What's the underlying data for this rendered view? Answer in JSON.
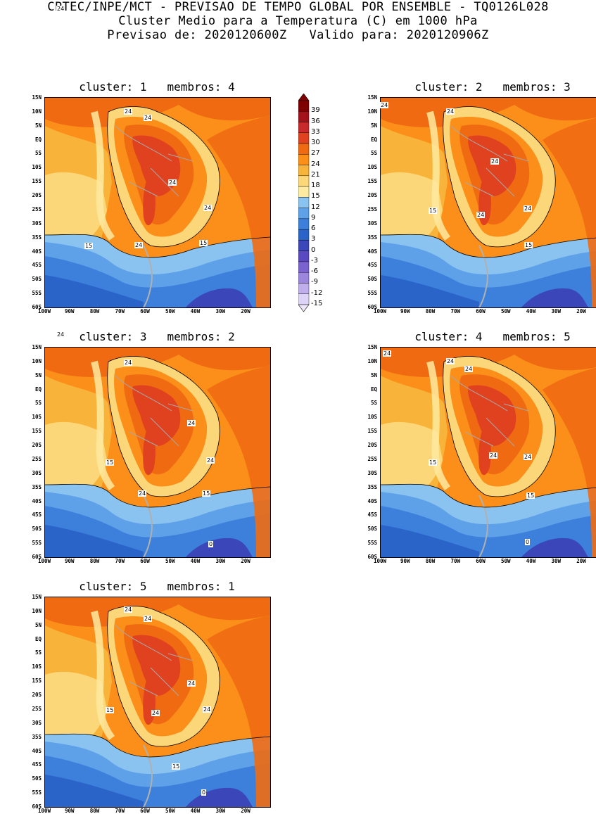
{
  "header": {
    "line1": "CPTEC/INPE/MCT - PREVISAO DE TEMPO GLOBAL POR ENSEMBLE - TQ0126L028",
    "line2": "Cluster Medio para a Temperatura (C) em 1000 hPa",
    "line3": "Previsao de: 2020120600Z   Valido para: 2020120906Z"
  },
  "lat_ticks": [
    "15N",
    "10N",
    "5N",
    "EQ",
    "5S",
    "10S",
    "15S",
    "20S",
    "25S",
    "30S",
    "35S",
    "40S",
    "45S",
    "50S",
    "55S",
    "60S"
  ],
  "lon_ticks": [
    "100W",
    "90W",
    "80W",
    "70W",
    "60W",
    "50W",
    "40W",
    "30W",
    "20W"
  ],
  "colorbar": {
    "labels": [
      "39",
      "36",
      "33",
      "30",
      "27",
      "24",
      "21",
      "18",
      "15",
      "12",
      "9",
      "6",
      "3",
      "0",
      "-3",
      "-6",
      "-9",
      "-12",
      "-15"
    ],
    "colors": [
      "#7f0000",
      "#a3121a",
      "#c8292a",
      "#e0421f",
      "#f06a12",
      "#fb8f1a",
      "#f8b43a",
      "#fcd77a",
      "#feeaa0",
      "#8ac2f0",
      "#5ea1e8",
      "#3c80db",
      "#2a64c9",
      "#3b46b8",
      "#5a49c0",
      "#7b63cf",
      "#9c85dd",
      "#bfaeeb",
      "#ddd3f6"
    ]
  },
  "panels": [
    {
      "title": "cluster: 1   membros: 4",
      "labels": [
        "24",
        "24",
        "24",
        "24",
        "15",
        "24",
        "15",
        "24"
      ]
    },
    {
      "title": "cluster: 2   membros: 3",
      "labels": [
        "24",
        "24",
        "24",
        "15",
        "24",
        "24",
        "15"
      ]
    },
    {
      "title": "cluster: 3   membros: 2",
      "labels": [
        "24",
        "24",
        "24",
        "24",
        "15",
        "24",
        "15",
        "0"
      ]
    },
    {
      "title": "cluster: 4   membros: 5",
      "labels": [
        "24",
        "24",
        "24",
        "15",
        "24",
        "24",
        "15",
        "0"
      ]
    },
    {
      "title": "cluster: 5   membros: 1",
      "labels": [
        "24",
        "24",
        "24",
        "15",
        "24",
        "24",
        "15",
        "0"
      ]
    }
  ]
}
